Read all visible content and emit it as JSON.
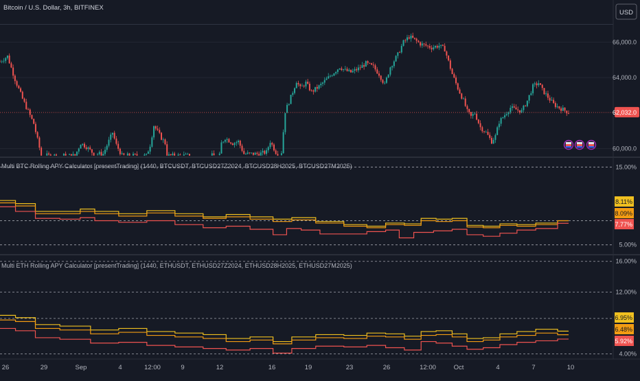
{
  "header": {
    "title": "Bitcoin / U.S. Dollar, 3h, BITFINEX",
    "currency_button": "USD"
  },
  "colors": {
    "background": "#161a25",
    "up": "#26a69a",
    "down": "#ef5350",
    "gold": "#f0c020",
    "orange": "#f39c12",
    "red": "#ef5350",
    "grid": "#2a2e39",
    "text": "#b2b5be"
  },
  "chart_data": [
    {
      "type": "candlestick",
      "title": "Bitcoin / U.S. Dollar, 3h, BITFINEX",
      "y_ticks": [
        "66,000.0",
        "64,000.0",
        "60,000.0"
      ],
      "y_tick_values": [
        66000,
        64000,
        60000
      ],
      "ylim": [
        59550,
        67600
      ],
      "last_price": "62,032.0",
      "last_price_value": 62032,
      "x_ticks": [
        "26",
        "29",
        "Sep",
        "4",
        "12:00",
        "9",
        "12",
        "16",
        "19",
        "23",
        "26",
        "12:00",
        "Oct",
        "4",
        "7",
        "10"
      ],
      "close_path": [
        [
          0,
          64900
        ],
        [
          4,
          65200
        ],
        [
          8,
          63900
        ],
        [
          12,
          62800
        ],
        [
          15,
          62100
        ],
        [
          18,
          61400
        ],
        [
          20,
          60500
        ],
        [
          22,
          59600
        ],
        [
          40,
          59600
        ],
        [
          43,
          60300
        ],
        [
          46,
          60100
        ],
        [
          50,
          59700
        ],
        [
          55,
          59700
        ],
        [
          60,
          60900
        ],
        [
          62,
          60200
        ],
        [
          65,
          59600
        ],
        [
          78,
          59600
        ],
        [
          80,
          60200
        ],
        [
          82,
          61300
        ],
        [
          86,
          60600
        ],
        [
          88,
          60300
        ],
        [
          89,
          59600
        ],
        [
          117,
          59600
        ],
        [
          118,
          60300
        ],
        [
          120,
          60600
        ],
        [
          124,
          60300
        ],
        [
          127,
          60400
        ],
        [
          130,
          59700
        ],
        [
          138,
          59700
        ],
        [
          142,
          59800
        ],
        [
          144,
          60400
        ],
        [
          146,
          60000
        ],
        [
          148,
          59600
        ],
        [
          150,
          59800
        ],
        [
          152,
          62100
        ],
        [
          155,
          62900
        ],
        [
          158,
          63800
        ],
        [
          160,
          63400
        ],
        [
          163,
          63700
        ],
        [
          166,
          63200
        ],
        [
          170,
          63500
        ],
        [
          174,
          63900
        ],
        [
          178,
          64300
        ],
        [
          181,
          64600
        ],
        [
          184,
          64400
        ],
        [
          187,
          64300
        ],
        [
          191,
          64500
        ],
        [
          195,
          64800
        ],
        [
          199,
          64600
        ],
        [
          202,
          64200
        ],
        [
          205,
          63600
        ],
        [
          208,
          64600
        ],
        [
          212,
          65300
        ],
        [
          215,
          66000
        ],
        [
          218,
          66300
        ],
        [
          220,
          66200
        ],
        [
          224,
          65900
        ],
        [
          227,
          65800
        ],
        [
          230,
          65700
        ],
        [
          234,
          65800
        ],
        [
          237,
          65600
        ],
        [
          239,
          64900
        ],
        [
          241,
          64200
        ],
        [
          244,
          63400
        ],
        [
          247,
          62700
        ],
        [
          249,
          62100
        ],
        [
          251,
          61800
        ],
        [
          253,
          62000
        ],
        [
          256,
          61200
        ],
        [
          259,
          60900
        ],
        [
          262,
          60400
        ],
        [
          264,
          60700
        ],
        [
          266,
          61500
        ],
        [
          269,
          61900
        ],
        [
          272,
          62300
        ],
        [
          275,
          62200
        ],
        [
          278,
          62100
        ],
        [
          281,
          62700
        ],
        [
          284,
          63500
        ],
        [
          287,
          63700
        ],
        [
          289,
          63300
        ],
        [
          292,
          62900
        ],
        [
          295,
          62500
        ],
        [
          298,
          62300
        ],
        [
          300,
          62200
        ],
        [
          303,
          62032
        ]
      ],
      "markers": [
        "event-flag",
        "event-flag",
        "event-flag"
      ]
    },
    {
      "type": "line",
      "title": "Multi BTC Rolling APY Calculator [presentTrading] (1440, BTCUSDT, BTCUSD27Z2024, BTCUSD28H2025, BTCUSD27M2025)",
      "y_ticks": [
        "15.00%",
        "5.00%"
      ],
      "y_tick_values": [
        15,
        5
      ],
      "ylim": [
        4.0,
        16.0
      ],
      "x_range": [
        0,
        303
      ],
      "series": [
        {
          "name": "BTCUSD27M2025",
          "color": "#f0c020",
          "last_label": "8.11%",
          "points": [
            [
              0,
              10.7
            ],
            [
              15,
              10.3
            ],
            [
              22,
              9.3
            ],
            [
              40,
              9.3
            ],
            [
              45,
              9.6
            ],
            [
              55,
              9.3
            ],
            [
              70,
              9.0
            ],
            [
              85,
              9.4
            ],
            [
              100,
              9.0
            ],
            [
              115,
              8.6
            ],
            [
              125,
              8.9
            ],
            [
              140,
              8.6
            ],
            [
              150,
              8.3
            ],
            [
              160,
              8.5
            ],
            [
              175,
              8.0
            ],
            [
              190,
              7.6
            ],
            [
              200,
              7.4
            ],
            [
              210,
              7.8
            ],
            [
              220,
              7.7
            ],
            [
              228,
              8.4
            ],
            [
              236,
              8.3
            ],
            [
              245,
              8.4
            ],
            [
              252,
              7.5
            ],
            [
              262,
              7.4
            ],
            [
              270,
              7.7
            ],
            [
              280,
              7.6
            ],
            [
              290,
              7.8
            ],
            [
              303,
              8.11
            ]
          ]
        },
        {
          "name": "BTCUSD28H2025",
          "color": "#f39c12",
          "last_label": "8.09%",
          "points": [
            [
              0,
              10.4
            ],
            [
              15,
              10.0
            ],
            [
              22,
              9.0
            ],
            [
              40,
              9.0
            ],
            [
              45,
              9.3
            ],
            [
              55,
              9.0
            ],
            [
              70,
              8.7
            ],
            [
              85,
              9.1
            ],
            [
              100,
              8.7
            ],
            [
              115,
              8.4
            ],
            [
              125,
              8.6
            ],
            [
              140,
              8.3
            ],
            [
              150,
              8.0
            ],
            [
              160,
              8.2
            ],
            [
              175,
              7.8
            ],
            [
              190,
              7.4
            ],
            [
              200,
              7.2
            ],
            [
              210,
              7.6
            ],
            [
              220,
              7.5
            ],
            [
              228,
              8.1
            ],
            [
              236,
              8.0
            ],
            [
              245,
              8.1
            ],
            [
              252,
              7.3
            ],
            [
              262,
              7.2
            ],
            [
              270,
              7.5
            ],
            [
              280,
              7.4
            ],
            [
              290,
              7.6
            ],
            [
              303,
              8.09
            ]
          ]
        },
        {
          "name": "BTCUSD27Z2024",
          "color": "#ef5350",
          "last_label": "7.77%",
          "points": [
            [
              0,
              9.9
            ],
            [
              15,
              9.3
            ],
            [
              22,
              8.4
            ],
            [
              40,
              8.3
            ],
            [
              45,
              8.5
            ],
            [
              55,
              8.1
            ],
            [
              70,
              7.9
            ],
            [
              85,
              8.1
            ],
            [
              100,
              7.6
            ],
            [
              115,
              7.2
            ],
            [
              125,
              7.4
            ],
            [
              140,
              7.0
            ],
            [
              150,
              6.3
            ],
            [
              155,
              7.1
            ],
            [
              165,
              6.9
            ],
            [
              175,
              6.4
            ],
            [
              190,
              6.4
            ],
            [
              200,
              6.7
            ],
            [
              210,
              6.9
            ],
            [
              215,
              5.9
            ],
            [
              225,
              6.6
            ],
            [
              236,
              6.8
            ],
            [
              245,
              7.0
            ],
            [
              252,
              6.3
            ],
            [
              262,
              6.1
            ],
            [
              270,
              6.5
            ],
            [
              280,
              6.9
            ],
            [
              290,
              7.1
            ],
            [
              303,
              7.77
            ]
          ]
        }
      ]
    },
    {
      "type": "line",
      "title": "Multi ETH Rolling APY Calculator [presentTrading] (1440, ETHUSDT, ETHUSD27Z2024, ETHUSD28H2025, ETHUSD27M2025)",
      "y_ticks": [
        "16.00%",
        "12.00%",
        "4.00%"
      ],
      "y_tick_values": [
        16,
        12,
        4
      ],
      "ylim": [
        3.6,
        16.6
      ],
      "x_range": [
        0,
        303
      ],
      "series": [
        {
          "name": "ETHUSD27M2025",
          "color": "#f0c020",
          "last_label": "6.95%",
          "points": [
            [
              0,
              9.0
            ],
            [
              15,
              8.7
            ],
            [
              22,
              7.8
            ],
            [
              40,
              7.6
            ],
            [
              55,
              7.1
            ],
            [
              70,
              7.3
            ],
            [
              85,
              6.9
            ],
            [
              100,
              6.7
            ],
            [
              115,
              6.5
            ],
            [
              125,
              6.0
            ],
            [
              140,
              6.2
            ],
            [
              150,
              5.6
            ],
            [
              160,
              6.2
            ],
            [
              175,
              6.5
            ],
            [
              190,
              6.4
            ],
            [
              200,
              6.7
            ],
            [
              210,
              6.6
            ],
            [
              220,
              6.3
            ],
            [
              228,
              6.9
            ],
            [
              236,
              7.0
            ],
            [
              245,
              6.6
            ],
            [
              252,
              6.0
            ],
            [
              262,
              6.1
            ],
            [
              270,
              6.6
            ],
            [
              280,
              6.9
            ],
            [
              290,
              7.2
            ],
            [
              303,
              6.95
            ]
          ]
        },
        {
          "name": "ETHUSD28H2025",
          "color": "#f39c12",
          "last_label": "6.48%",
          "points": [
            [
              0,
              8.4
            ],
            [
              15,
              8.2
            ],
            [
              22,
              7.3
            ],
            [
              40,
              7.1
            ],
            [
              55,
              6.6
            ],
            [
              70,
              6.8
            ],
            [
              85,
              6.4
            ],
            [
              100,
              6.2
            ],
            [
              115,
              6.0
            ],
            [
              125,
              5.6
            ],
            [
              140,
              5.8
            ],
            [
              150,
              5.3
            ],
            [
              160,
              5.8
            ],
            [
              175,
              6.1
            ],
            [
              190,
              6.0
            ],
            [
              200,
              6.3
            ],
            [
              210,
              6.2
            ],
            [
              220,
              5.9
            ],
            [
              228,
              6.4
            ],
            [
              236,
              6.5
            ],
            [
              245,
              6.2
            ],
            [
              252,
              5.6
            ],
            [
              262,
              5.8
            ],
            [
              270,
              6.2
            ],
            [
              280,
              6.4
            ],
            [
              290,
              6.7
            ],
            [
              303,
              6.48
            ]
          ]
        },
        {
          "name": "ETHUSD27Z2024",
          "color": "#ef5350",
          "last_label": "5.92%",
          "points": [
            [
              0,
              7.3
            ],
            [
              15,
              7.0
            ],
            [
              22,
              6.1
            ],
            [
              40,
              5.9
            ],
            [
              55,
              5.4
            ],
            [
              70,
              5.5
            ],
            [
              85,
              5.1
            ],
            [
              100,
              4.9
            ],
            [
              115,
              4.7
            ],
            [
              125,
              4.5
            ],
            [
              140,
              4.7
            ],
            [
              150,
              4.1
            ],
            [
              160,
              4.7
            ],
            [
              175,
              5.0
            ],
            [
              190,
              4.9
            ],
            [
              200,
              5.1
            ],
            [
              210,
              4.8
            ],
            [
              220,
              4.5
            ],
            [
              228,
              5.6
            ],
            [
              236,
              5.4
            ],
            [
              245,
              5.0
            ],
            [
              252,
              4.6
            ],
            [
              262,
              4.8
            ],
            [
              270,
              5.2
            ],
            [
              280,
              5.5
            ],
            [
              290,
              5.7
            ],
            [
              303,
              5.92
            ]
          ]
        }
      ]
    }
  ]
}
